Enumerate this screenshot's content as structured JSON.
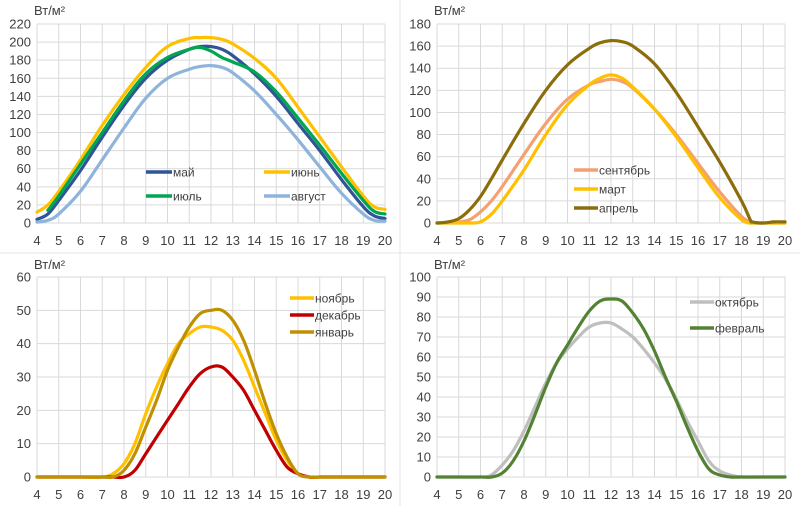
{
  "chart_data": [
    {
      "type": "line",
      "panel": "top-left",
      "title": "",
      "ylabel": "Вт/м²",
      "xlabel": "",
      "xlim": [
        4,
        20
      ],
      "ylim": [
        0,
        220
      ],
      "xticks": [
        4,
        5,
        6,
        7,
        8,
        9,
        10,
        11,
        12,
        13,
        14,
        15,
        16,
        17,
        18,
        19,
        20
      ],
      "yticks": [
        0,
        20,
        40,
        60,
        80,
        100,
        120,
        140,
        160,
        180,
        200,
        220
      ],
      "grid": true,
      "legend": {
        "placement": "lower-center",
        "columns": 2
      },
      "x": [
        4,
        4.5,
        5,
        6,
        7,
        8,
        9,
        10,
        11,
        11.5,
        12,
        12.5,
        13,
        14,
        15,
        16,
        17,
        18,
        19,
        19.5,
        20
      ],
      "series": [
        {
          "name": "май",
          "color": "#2f5597",
          "values": [
            4,
            10,
            25,
            58,
            95,
            130,
            160,
            180,
            192,
            195,
            195,
            192,
            185,
            165,
            140,
            110,
            80,
            48,
            18,
            8,
            5
          ]
        },
        {
          "name": "июнь",
          "color": "#ffc000",
          "values": [
            12,
            20,
            35,
            70,
            108,
            142,
            172,
            195,
            204,
            205,
            205,
            203,
            198,
            182,
            160,
            128,
            95,
            62,
            30,
            18,
            15
          ]
        },
        {
          "name": "июль",
          "color": "#00a650",
          "values": [
            null,
            14,
            30,
            65,
            100,
            135,
            165,
            183,
            192,
            194,
            190,
            183,
            178,
            167,
            145,
            116,
            86,
            55,
            25,
            13,
            10
          ]
        },
        {
          "name": "август",
          "color": "#8fb4dc",
          "values": [
            1,
            3,
            10,
            35,
            70,
            105,
            138,
            160,
            170,
            173,
            174,
            172,
            166,
            146,
            120,
            92,
            62,
            33,
            10,
            3,
            2
          ]
        }
      ]
    },
    {
      "type": "line",
      "panel": "top-right",
      "title": "",
      "ylabel": "Вт/м²",
      "xlabel": "",
      "xlim": [
        4,
        20
      ],
      "ylim": [
        0,
        180
      ],
      "xticks": [
        4,
        5,
        6,
        7,
        8,
        9,
        10,
        11,
        12,
        13,
        14,
        15,
        16,
        17,
        18,
        19,
        20
      ],
      "yticks": [
        0,
        20,
        40,
        60,
        80,
        100,
        120,
        140,
        160,
        180
      ],
      "grid": true,
      "legend": {
        "placement": "lower-center",
        "columns": 1
      },
      "x": [
        4,
        4.5,
        5,
        5.5,
        6,
        6.5,
        7,
        8,
        9,
        10,
        11,
        11.5,
        12,
        12.5,
        13,
        14,
        15,
        16,
        17,
        18,
        18.4,
        18.5,
        19,
        19.5,
        20
      ],
      "series": [
        {
          "name": "сентябрь",
          "color": "#f4a070",
          "values": [
            0,
            0,
            1,
            3,
            10,
            20,
            33,
            62,
            90,
            112,
            125,
            128,
            130,
            128,
            122,
            103,
            80,
            54,
            28,
            6,
            1,
            0,
            0,
            0,
            0
          ]
        },
        {
          "name": "март",
          "color": "#ffc000",
          "values": [
            0,
            0,
            0,
            0,
            1,
            8,
            20,
            48,
            80,
            107,
            125,
            131,
            134,
            131,
            123,
            103,
            78,
            50,
            23,
            3,
            0,
            0,
            0,
            0,
            0
          ]
        },
        {
          "name": "апрель",
          "color": "#8b6d0b",
          "values": [
            0,
            1,
            4,
            12,
            24,
            40,
            57,
            90,
            120,
            143,
            158,
            163,
            165,
            164,
            160,
            144,
            118,
            87,
            55,
            20,
            3,
            1,
            0,
            1,
            1
          ]
        }
      ]
    },
    {
      "type": "line",
      "panel": "bottom-left",
      "title": "",
      "ylabel": "Вт/м²",
      "xlabel": "",
      "xlim": [
        4,
        20
      ],
      "ylim": [
        0,
        60
      ],
      "xticks": [
        4,
        5,
        6,
        7,
        8,
        9,
        10,
        11,
        12,
        13,
        14,
        15,
        16,
        17,
        18,
        19,
        20
      ],
      "yticks": [
        0,
        10,
        20,
        30,
        40,
        50,
        60
      ],
      "grid": true,
      "legend": {
        "placement": "top-right",
        "columns": 1
      },
      "x": [
        4,
        5,
        6,
        7,
        7.5,
        8,
        8.5,
        9,
        9.5,
        10,
        10.5,
        11,
        11.5,
        12,
        12.5,
        13,
        13.5,
        14,
        14.5,
        15,
        15.5,
        16,
        16.5,
        17,
        18,
        19,
        20
      ],
      "series": [
        {
          "name": "ноябрь",
          "color": "#ffc000",
          "values": [
            0,
            0,
            0,
            0,
            1,
            4,
            10,
            19,
            27,
            34,
            40,
            43,
            45,
            45,
            44,
            41,
            35,
            27,
            19,
            11,
            5,
            1,
            0,
            0,
            0,
            0,
            0
          ]
        },
        {
          "name": "декабрь",
          "color": "#c00000",
          "values": [
            0,
            0,
            0,
            0,
            0,
            0,
            2,
            7,
            12,
            17,
            22,
            27,
            31,
            33,
            33,
            30,
            26,
            20,
            14,
            8,
            3,
            1,
            0,
            0,
            0,
            0,
            0
          ]
        },
        {
          "name": "январь",
          "color": "#bf9000",
          "values": [
            0,
            0,
            0,
            0,
            0,
            2,
            7,
            15,
            23,
            32,
            39,
            45,
            49,
            50,
            50,
            47,
            41,
            32,
            22,
            13,
            6,
            1,
            0,
            0,
            0,
            0,
            0
          ]
        }
      ]
    },
    {
      "type": "line",
      "panel": "bottom-right",
      "title": "",
      "ylabel": "Вт/м²",
      "xlabel": "",
      "xlim": [
        4,
        20
      ],
      "ylim": [
        0,
        100
      ],
      "xticks": [
        4,
        5,
        6,
        7,
        8,
        9,
        10,
        11,
        12,
        13,
        14,
        15,
        16,
        17,
        18,
        19,
        20
      ],
      "yticks": [
        0,
        10,
        20,
        30,
        40,
        50,
        60,
        70,
        80,
        90,
        100
      ],
      "grid": true,
      "legend": {
        "placement": "top-right",
        "columns": 1
      },
      "x": [
        4,
        5,
        6,
        6.5,
        7,
        7.5,
        8,
        8.5,
        9,
        9.5,
        10,
        10.5,
        11,
        11.5,
        12,
        12.5,
        13,
        13.5,
        14,
        14.5,
        15,
        15.5,
        16,
        16.5,
        17,
        17.5,
        18,
        19,
        20
      ],
      "series": [
        {
          "name": "октябрь",
          "color": "#bfbfbf",
          "values": [
            0,
            0,
            0,
            1,
            6,
            13,
            23,
            35,
            47,
            57,
            64,
            70,
            75,
            77,
            77,
            74,
            70,
            64,
            57,
            49,
            39,
            28,
            18,
            8,
            3,
            1,
            0,
            0,
            0
          ]
        },
        {
          "name": "февраль",
          "color": "#548235",
          "values": [
            0,
            0,
            0,
            0,
            2,
            8,
            18,
            31,
            45,
            57,
            66,
            75,
            83,
            88,
            89,
            88,
            82,
            74,
            63,
            50,
            38,
            25,
            13,
            4,
            1,
            0,
            0,
            0,
            0
          ]
        }
      ]
    }
  ]
}
